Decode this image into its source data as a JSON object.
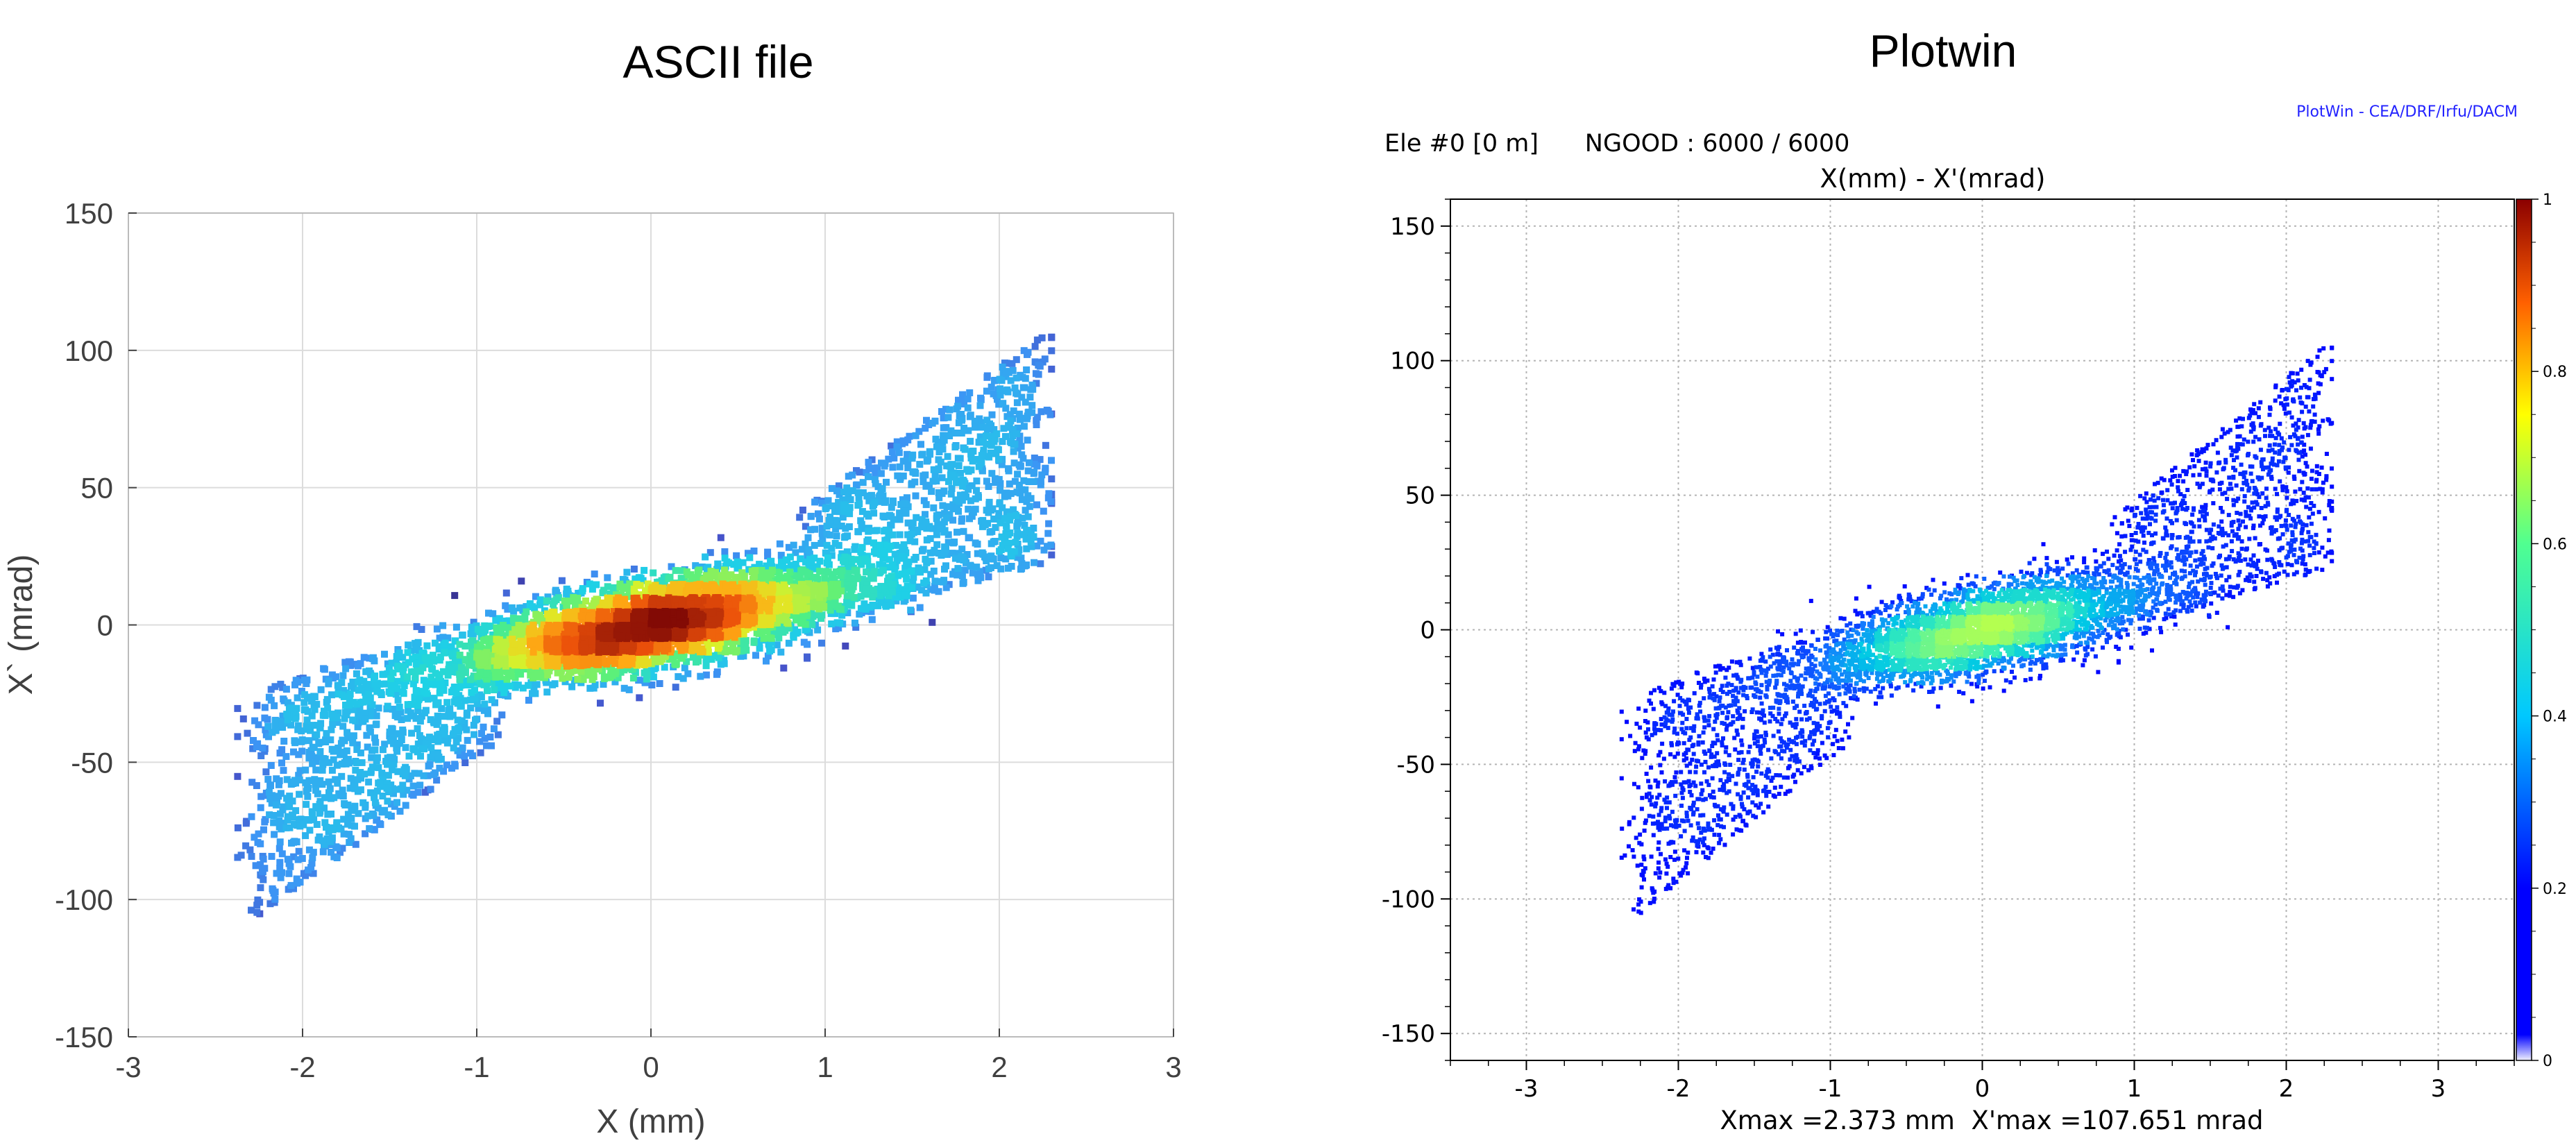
{
  "panels": [
    {
      "title": "ASCII file"
    },
    {
      "title": "Plotwin"
    }
  ],
  "plotwin": {
    "header": "Ele #0 [0 m]      NGOOD : 6000 / 6000",
    "credit": "PlotWin - CEA/DRF/Irfu/DACM",
    "footer": "Xmax =2.373 mm  X'max =107.651 mrad"
  },
  "chart_data": [
    {
      "type": "scatter",
      "title": "ASCII file",
      "xlabel": "X (mm)",
      "ylabel": "X` (mrad)",
      "xlim": [
        -3,
        3
      ],
      "ylim": [
        -150,
        150
      ],
      "xticks": [
        -3,
        -2,
        -1,
        0,
        1,
        2,
        3
      ],
      "yticks": [
        -150,
        -100,
        -50,
        0,
        50,
        100,
        150
      ],
      "xtick_labels": [
        "-3",
        "-2",
        "-1",
        "0",
        "1",
        "2",
        "3"
      ],
      "ytick_labels": [
        "-150",
        "-100",
        "-50",
        "0",
        "50",
        "100",
        "150"
      ],
      "grid": true,
      "colormap": "jet (density)",
      "n_points": 6000,
      "distribution": {
        "core_slope_mrad_per_mm": 12,
        "core_sigma_x_mm": 0.75,
        "core_sigma_y_mrad": 8,
        "halo_slope_mrad_per_mm": 32,
        "halo_x_range_mm": [
          -2.373,
          2.3
        ],
        "x_max_mm": 2.373,
        "xp_max_mrad": 107.651
      }
    },
    {
      "type": "scatter",
      "title": "X(mm) - X'(mrad)",
      "xlabel": "",
      "ylabel": "",
      "xlim": [
        -3.5,
        3.5
      ],
      "ylim": [
        -160,
        160
      ],
      "xticks": [
        -3,
        -2,
        -1,
        0,
        1,
        2,
        3
      ],
      "yticks": [
        -150,
        -100,
        -50,
        0,
        50,
        100,
        150
      ],
      "xtick_labels": [
        "-3",
        "-2",
        "-1",
        "0",
        "1",
        "2",
        "3"
      ],
      "ytick_labels": [
        "-150",
        "-100",
        "-50",
        "0",
        "50",
        "100",
        "150"
      ],
      "grid": true,
      "colormap": "jet (density)",
      "colorbar": {
        "min": 0,
        "max": 1,
        "ticks": [
          "0",
          "0.2",
          "0.4",
          "0.6",
          "0.8",
          "1"
        ]
      },
      "n_points": 6000,
      "distribution": {
        "core_slope_mrad_per_mm": 12,
        "core_sigma_x_mm": 0.75,
        "core_sigma_y_mrad": 8,
        "halo_slope_mrad_per_mm": 32,
        "halo_x_range_mm": [
          -2.373,
          2.3
        ],
        "x_max_mm": 2.373,
        "xp_max_mrad": 107.651
      }
    }
  ]
}
